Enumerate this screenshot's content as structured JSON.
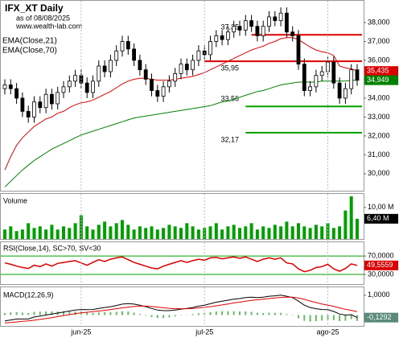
{
  "chart_data": [
    {
      "type": "candlestick",
      "title": "IFX_XT Daily",
      "subtitle": "as of 08/08/2025",
      "annotation": "www.wealth-lab.com",
      "open": [
        34500,
        34700,
        34500,
        34000,
        33300,
        33000,
        33800,
        33500,
        34200,
        33700,
        34300,
        34600,
        34900,
        35200,
        34800,
        34300,
        34900,
        35700,
        35400,
        36000,
        36500,
        37000,
        36600,
        36000,
        35500,
        35000,
        34400,
        34100,
        34600,
        34900,
        35300,
        35800,
        35500,
        36000,
        36500,
        36300,
        37000,
        37300,
        37100,
        37500,
        37800,
        37600,
        38100,
        37800,
        37300,
        37800,
        38300,
        38100,
        38500,
        37500,
        37300,
        35800,
        34400,
        34600,
        35200,
        35400,
        35900,
        34800,
        34000,
        34500,
        35500
      ],
      "high": [
        35000,
        35000,
        34800,
        34300,
        33600,
        34100,
        34100,
        34500,
        34500,
        34600,
        34900,
        35200,
        35500,
        35500,
        35100,
        35200,
        36000,
        36000,
        36300,
        36800,
        37300,
        37300,
        36900,
        36300,
        35800,
        35300,
        34700,
        34900,
        35200,
        35600,
        36100,
        36100,
        36300,
        36800,
        36800,
        37300,
        37600,
        37600,
        37800,
        38100,
        38100,
        38400,
        38400,
        38100,
        38100,
        38600,
        38600,
        38800,
        38800,
        37800,
        37600,
        36100,
        34900,
        35500,
        35700,
        36200,
        36200,
        35100,
        34800,
        35800,
        35800
      ],
      "low": [
        34200,
        34200,
        33700,
        33000,
        32700,
        32700,
        33200,
        33200,
        33400,
        33400,
        34000,
        34300,
        34600,
        34500,
        34000,
        34000,
        34600,
        35100,
        35100,
        35700,
        36200,
        36300,
        35700,
        35200,
        34700,
        34100,
        33800,
        33800,
        34300,
        34600,
        35000,
        35200,
        35200,
        35700,
        36000,
        36000,
        36700,
        36800,
        36800,
        37200,
        37300,
        37300,
        37500,
        37000,
        37000,
        37500,
        37800,
        37800,
        37200,
        37000,
        35500,
        34100,
        34100,
        34300,
        34900,
        35100,
        34500,
        33700,
        33700,
        34200,
        34650
      ],
      "close": [
        34700,
        34500,
        34000,
        33300,
        33000,
        33800,
        33500,
        34200,
        33700,
        34300,
        34600,
        34900,
        35200,
        34800,
        34300,
        34900,
        35700,
        35400,
        36000,
        36500,
        37000,
        36600,
        36000,
        35500,
        35000,
        34400,
        34100,
        34600,
        34900,
        35300,
        35800,
        35500,
        36000,
        36500,
        36300,
        37000,
        37300,
        37100,
        37500,
        37800,
        37600,
        38100,
        37800,
        37300,
        37800,
        38300,
        38100,
        38500,
        37500,
        37300,
        35800,
        34400,
        34600,
        35200,
        35400,
        35900,
        34800,
        34000,
        34500,
        35500,
        34949
      ],
      "color": "#000000",
      "series": [
        {
          "name": "EMA(Close,21)",
          "color": "#dd0000",
          "last_label": "35,435",
          "values": [
            30200,
            30900,
            31500,
            31900,
            32200,
            32500,
            32700,
            32900,
            33000,
            33200,
            33300,
            33500,
            33650,
            33750,
            33800,
            33900,
            34050,
            34200,
            34350,
            34550,
            34750,
            34900,
            35000,
            35050,
            35050,
            35000,
            34950,
            34950,
            34950,
            35000,
            35050,
            35100,
            35150,
            35250,
            35350,
            35500,
            35650,
            35800,
            35950,
            36100,
            36250,
            36400,
            36550,
            36650,
            36750,
            36900,
            37000,
            37150,
            37200,
            37200,
            37100,
            36900,
            36700,
            36550,
            36450,
            36400,
            36250,
            35700,
            35600,
            35550,
            35435
          ]
        },
        {
          "name": "EMA(Close,70)",
          "color": "#008000",
          "last_label": "34,949",
          "values": [
            29300,
            29600,
            29900,
            30200,
            30450,
            30700,
            30900,
            31100,
            31300,
            31450,
            31600,
            31750,
            31900,
            32050,
            32150,
            32250,
            32350,
            32450,
            32550,
            32650,
            32750,
            32850,
            32950,
            33000,
            33050,
            33100,
            33150,
            33200,
            33250,
            33300,
            33350,
            33400,
            33450,
            33500,
            33550,
            33600,
            33700,
            33800,
            33850,
            33950,
            34050,
            34150,
            34250,
            34350,
            34400,
            34500,
            34600,
            34700,
            34750,
            34800,
            34850,
            34850,
            34850,
            34850,
            34900,
            34900,
            34900,
            34900,
            34900,
            34950,
            34949
          ]
        }
      ],
      "levels": [
        {
          "value": 37350,
          "label": "37,35",
          "color": "#dd0000"
        },
        {
          "value": 35950,
          "label": "35,95",
          "color": "#dd0000"
        },
        {
          "value": 33560,
          "label": "33,56",
          "color": "#00a000"
        },
        {
          "value": 32170,
          "label": "32,17",
          "color": "#00a000"
        }
      ],
      "ylim": [
        29100,
        39150
      ],
      "yticks": [
        {
          "value": 30000,
          "label": "30,000"
        },
        {
          "value": 31000,
          "label": "31,000"
        },
        {
          "value": 32000,
          "label": "32,000"
        },
        {
          "value": 33000,
          "label": "33,000"
        },
        {
          "value": 34000,
          "label": "34,000"
        },
        {
          "value": 35000,
          "label": "35,000"
        },
        {
          "value": 36000,
          "label": "36,000"
        },
        {
          "value": 37000,
          "label": "37,000"
        },
        {
          "value": 38000,
          "label": "38,000"
        }
      ],
      "grid": false
    },
    {
      "type": "bar",
      "title": "Volume",
      "color": "#00a000",
      "last_label": "6,40 M",
      "values": [
        3,
        4,
        2.5,
        3,
        5,
        3.5,
        4,
        3,
        4.5,
        3,
        4,
        3.5,
        5,
        7.5,
        4,
        3,
        4.5,
        5.5,
        4,
        5,
        6,
        4.5,
        3,
        4,
        3.5,
        4,
        3,
        3.5,
        4.5,
        4,
        3.5,
        5,
        4,
        3,
        3.5,
        4,
        5,
        3,
        4,
        4.5,
        3.5,
        4,
        5,
        3,
        4,
        3.5,
        4.5,
        4,
        5.5,
        4,
        5,
        4,
        3.5,
        4.5,
        4,
        5,
        3.5,
        4,
        9,
        13.5,
        6.4
      ],
      "ylim": [
        0,
        14.25
      ],
      "yticks": [
        {
          "value": 10,
          "label": "10,00 M"
        }
      ],
      "grid": false
    },
    {
      "type": "line",
      "title": "RSI(Close,14), SC>70, SV<30",
      "series": [
        {
          "color": "#dd0000",
          "last_label": "49,5559",
          "values": [
            55,
            52,
            48,
            45,
            43,
            50,
            47,
            53,
            48,
            54,
            56,
            58,
            60,
            55,
            50,
            56,
            62,
            58,
            63,
            66,
            68,
            62,
            56,
            52,
            48,
            44,
            42,
            48,
            52,
            56,
            60,
            56,
            60,
            63,
            61,
            66,
            67,
            64,
            66,
            68,
            65,
            68,
            63,
            58,
            63,
            66,
            63,
            66,
            55,
            53,
            42,
            36,
            39,
            45,
            47,
            52,
            42,
            37,
            43,
            53,
            49.5559
          ]
        }
      ],
      "ylim": [
        9,
        100
      ],
      "yticks": [
        {
          "value": 70,
          "label": "70,0000"
        },
        {
          "value": 30,
          "label": "30,0000"
        }
      ],
      "grid": true,
      "grid_color": "#00a000"
    },
    {
      "type": "macd",
      "title": "MACD(12,26,9)",
      "categories": [
        null,
        null,
        null,
        null,
        null,
        null,
        null,
        null,
        null,
        null,
        null,
        null,
        null,
        "jun-25",
        null,
        null,
        null,
        null,
        null,
        null,
        null,
        null,
        null,
        null,
        null,
        null,
        null,
        null,
        null,
        null,
        null,
        null,
        null,
        null,
        "jul-25",
        null,
        null,
        null,
        null,
        null,
        null,
        null,
        null,
        null,
        null,
        null,
        null,
        null,
        null,
        null,
        null,
        null,
        null,
        null,
        null,
        "ago-25",
        null,
        null,
        null,
        null,
        null
      ],
      "histogram": {
        "color": "#66bb66",
        "values": [
          0.1,
          0.13,
          0.15,
          0.12,
          0.1,
          0.16,
          0.17,
          0.18,
          0.18,
          0.18,
          0.18,
          0.18,
          0.18,
          0.17,
          0.13,
          0.11,
          0.13,
          0.14,
          0.14,
          0.16,
          0.19,
          0.18,
          0.12,
          0.05,
          -0.03,
          -0.1,
          -0.15,
          -0.15,
          -0.12,
          -0.07,
          -0.02,
          0.01,
          0.05,
          0.09,
          0.11,
          0.15,
          0.18,
          0.19,
          0.19,
          0.19,
          0.18,
          0.18,
          0.16,
          0.11,
          0.1,
          0.12,
          0.11,
          0.11,
          0.05,
          -0.02,
          -0.16,
          -0.29,
          -0.33,
          -0.31,
          -0.28,
          -0.23,
          -0.26,
          -0.31,
          -0.29,
          -0.21,
          -0.3
        ]
      },
      "series": [
        {
          "color": "#000000",
          "last_label": "-0,1292",
          "values": [
            -0.3,
            -0.25,
            -0.2,
            -0.2,
            -0.2,
            -0.1,
            -0.05,
            0,
            0.05,
            0.1,
            0.15,
            0.2,
            0.25,
            0.28,
            0.27,
            0.28,
            0.33,
            0.38,
            0.42,
            0.48,
            0.55,
            0.58,
            0.55,
            0.5,
            0.42,
            0.33,
            0.25,
            0.22,
            0.22,
            0.25,
            0.3,
            0.33,
            0.38,
            0.45,
            0.5,
            0.57,
            0.65,
            0.7,
            0.75,
            0.8,
            0.83,
            0.88,
            0.9,
            0.88,
            0.9,
            0.95,
            0.97,
            1.0,
            0.95,
            0.88,
            0.7,
            0.5,
            0.38,
            0.32,
            0.28,
            0.27,
            0.18,
            0.05,
            0,
            0.02,
            -0.1292
          ]
        },
        {
          "color": "#dd0000",
          "values": [
            -0.4,
            -0.38,
            -0.35,
            -0.32,
            -0.3,
            -0.26,
            -0.22,
            -0.18,
            -0.13,
            -0.08,
            -0.03,
            0.02,
            0.07,
            0.11,
            0.14,
            0.17,
            0.2,
            0.24,
            0.28,
            0.32,
            0.36,
            0.4,
            0.43,
            0.45,
            0.45,
            0.43,
            0.4,
            0.37,
            0.34,
            0.32,
            0.32,
            0.32,
            0.33,
            0.36,
            0.39,
            0.42,
            0.47,
            0.51,
            0.56,
            0.61,
            0.65,
            0.7,
            0.74,
            0.77,
            0.8,
            0.83,
            0.86,
            0.89,
            0.9,
            0.9,
            0.86,
            0.79,
            0.71,
            0.63,
            0.56,
            0.5,
            0.44,
            0.36,
            0.29,
            0.23,
            0.17
          ]
        }
      ],
      "ylim": [
        -0.55,
        1.4
      ],
      "yticks": [
        {
          "value": 1,
          "label": "1,0000"
        }
      ],
      "grid": false
    }
  ]
}
